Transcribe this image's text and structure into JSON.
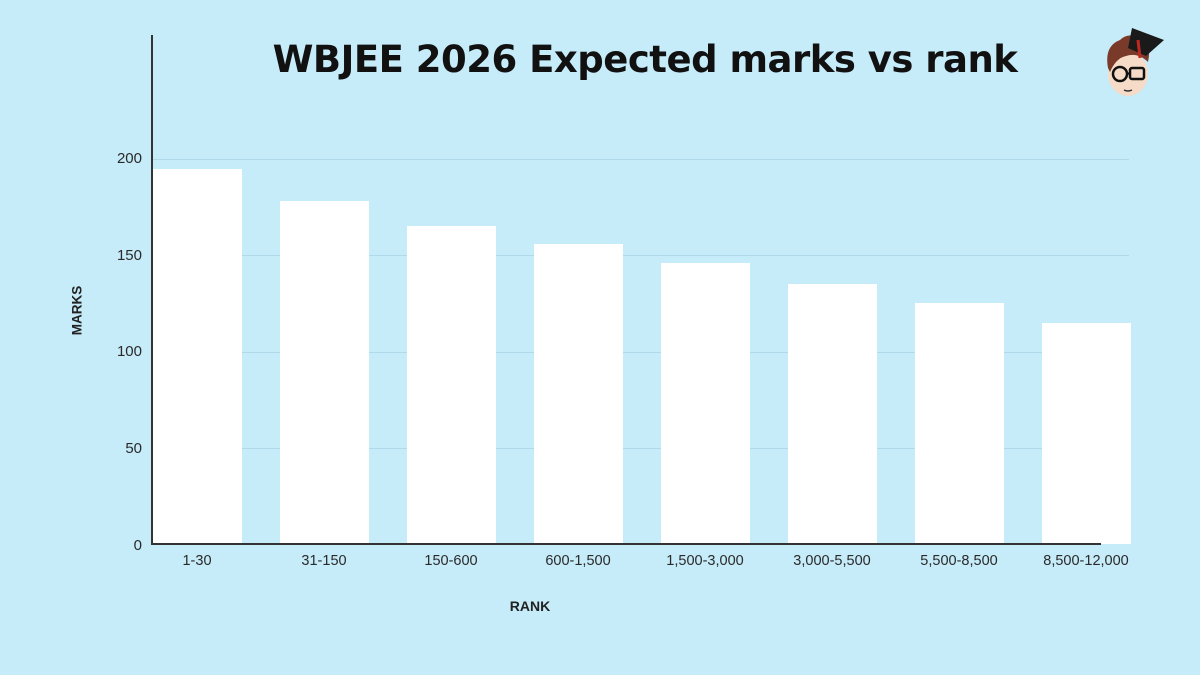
{
  "chart_data": {
    "type": "bar",
    "title": "WBJEE 2026 Expected marks vs rank",
    "xlabel": "RANK",
    "ylabel": "MARKS",
    "categories": [
      "1-30",
      "31-150",
      "150-600",
      "600-1,500",
      "1,500-3,000",
      "3,000-5,500",
      "5,500-8,500",
      "8,500-12,000"
    ],
    "values": [
      195,
      178,
      165,
      156,
      146,
      135,
      125,
      115
    ],
    "yticks": [
      "0",
      "50",
      "100",
      "150",
      "200"
    ],
    "ylim": [
      0,
      200
    ],
    "grid": true,
    "legend": null,
    "colors": {
      "background": "#c6ebf9",
      "bar": "#ffffff",
      "axis": "#333333",
      "grid": "#b0d9ea"
    }
  },
  "logo": {
    "icon": "cartoon-student-mascot-icon"
  }
}
